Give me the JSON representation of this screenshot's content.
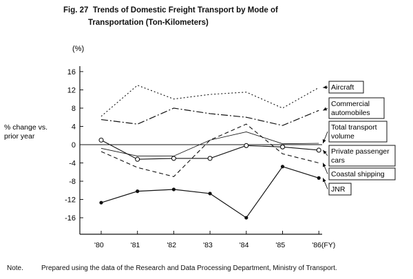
{
  "title": {
    "fig": "Fig. 27",
    "line1": "Trends of Domestic Freight Transport by Mode of",
    "line2": "Transportation (Ton-Kilometers)"
  },
  "note": {
    "label": "Note.",
    "text": "Prepared using the data of the Research and Data Processing Department, Ministry of Transport."
  },
  "chart_data": {
    "type": "line",
    "unit_label": "(%)",
    "ylabel": "% change vs. prior year",
    "ylabel_lines": [
      "% change vs.",
      "prior year"
    ],
    "x": [
      "'80",
      "'81",
      "'82",
      "'83",
      "'84",
      "'85",
      "'86(FY)"
    ],
    "ylim": [
      -20,
      18
    ],
    "yticks": [
      16,
      12,
      8,
      4,
      0,
      -4,
      -8,
      -12,
      -16
    ],
    "grid": false,
    "legend": "right, boxed labels with leader arrows",
    "series": [
      {
        "name": "Aircraft",
        "label_lines": [
          "Aircraft"
        ],
        "style": "dotted",
        "values": [
          6.2,
          13.0,
          10.0,
          11.0,
          11.5,
          8.0,
          12.5
        ]
      },
      {
        "name": "Commercial automobiles",
        "label_lines": [
          "Commercial",
          "automobiles"
        ],
        "style": "dashdot",
        "values": [
          5.5,
          4.5,
          8.0,
          6.8,
          6.0,
          4.2,
          7.5
        ]
      },
      {
        "name": "Total transport volume",
        "label_lines": [
          "Total transport",
          "volume"
        ],
        "style": "thin",
        "values": [
          -0.8,
          -2.5,
          -2.5,
          1.0,
          2.8,
          0.2,
          0.3
        ]
      },
      {
        "name": "Private passenger cars",
        "label_lines": [
          "Private passenger",
          "cars"
        ],
        "style": "circles",
        "values": [
          1.0,
          -3.2,
          -3.0,
          -3.0,
          -0.2,
          -0.5,
          -1.2
        ]
      },
      {
        "name": "Coastal shipping",
        "label_lines": [
          "Coastal shipping"
        ],
        "style": "dashed",
        "values": [
          -1.5,
          -5.0,
          -7.0,
          1.0,
          4.5,
          -2.0,
          -4.0
        ]
      },
      {
        "name": "JNR",
        "label_lines": [
          "JNR"
        ],
        "style": "dots",
        "values": [
          -12.7,
          -10.2,
          -9.8,
          -10.7,
          -16.0,
          -4.8,
          -7.3
        ]
      }
    ]
  }
}
